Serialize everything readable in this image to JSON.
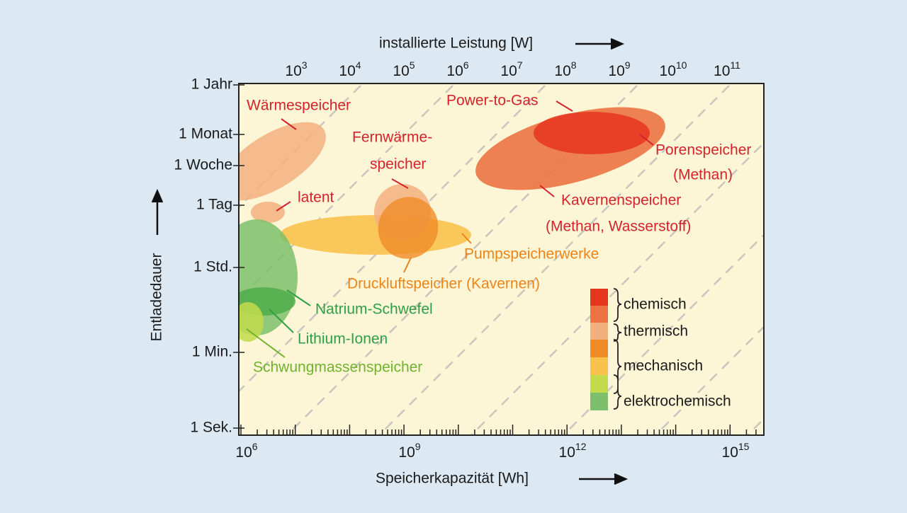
{
  "axes": {
    "top_title": "installierte Leistung [W]",
    "top_ticks": [
      {
        "base": "10",
        "exp": "3"
      },
      {
        "base": "10",
        "exp": "4"
      },
      {
        "base": "10",
        "exp": "5"
      },
      {
        "base": "10",
        "exp": "6"
      },
      {
        "base": "10",
        "exp": "7"
      },
      {
        "base": "10",
        "exp": "8"
      },
      {
        "base": "10",
        "exp": "9"
      },
      {
        "base": "10",
        "exp": "10"
      },
      {
        "base": "10",
        "exp": "11"
      }
    ],
    "bottom_title": "Speicherkapazität [Wh]",
    "bottom_ticks": [
      {
        "base": "10",
        "exp": "6"
      },
      {
        "base": "10",
        "exp": "9"
      },
      {
        "base": "10",
        "exp": "12"
      },
      {
        "base": "10",
        "exp": "15"
      }
    ],
    "left_title": "Entladedauer",
    "left_ticks": [
      "1 Jahr",
      "1 Monat",
      "1 Woche",
      "1 Tag",
      "1 Std.",
      "1 Min.",
      "1 Sek."
    ]
  },
  "labels": {
    "waerme": "Wärmespeicher",
    "latent": "latent",
    "fern1": "Fernwärme-",
    "fern2": "speicher",
    "p2g": "Power-to-Gas",
    "poren1": "Porenspeicher",
    "poren2": "(Methan)",
    "kav1": "Kavernenspeicher",
    "kav2": "(Methan, Wasserstoff)",
    "pump": "Pumpspeicherwerke",
    "druck": "Druckluftspeicher (Kavernen)",
    "natrium": "Natrium-Schwefel",
    "lithium": "Lithium-Ionen",
    "schwung": "Schwungmassenspeicher"
  },
  "legend": [
    "chemisch",
    "thermisch",
    "mechanisch",
    "elektrochemisch"
  ]
}
